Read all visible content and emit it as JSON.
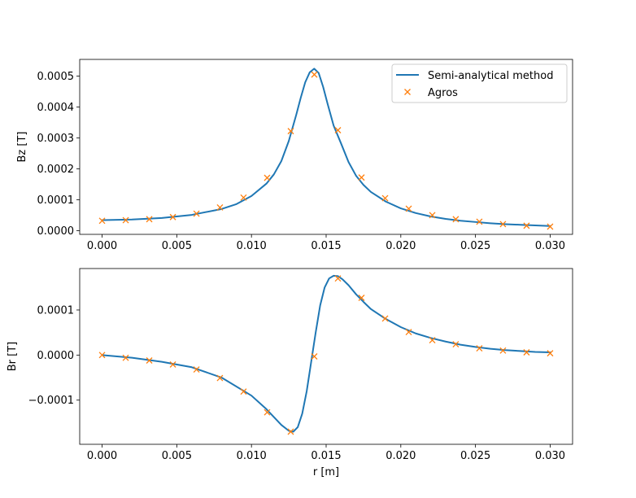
{
  "chart_data": [
    {
      "type": "line",
      "ylabel": "Bz [T]",
      "xlabel": "",
      "xlim": [
        -0.0015,
        0.0315
      ],
      "ylim": [
        -1.2e-05,
        0.000554
      ],
      "xticks": [
        "0.000",
        "0.005",
        "0.010",
        "0.015",
        "0.020",
        "0.025",
        "0.030"
      ],
      "xtick_values": [
        0,
        0.005,
        0.01,
        0.015,
        0.02,
        0.025,
        0.03
      ],
      "yticks": [
        "0.0000",
        "0.0001",
        "0.0002",
        "0.0003",
        "0.0004",
        "0.0005"
      ],
      "ytick_values": [
        0,
        0.0001,
        0.0002,
        0.0003,
        0.0004,
        0.0005
      ],
      "legend": {
        "placement": "top-right",
        "entries": [
          "Semi-analytical method",
          "Agros"
        ]
      },
      "series": [
        {
          "name": "Semi-analytical method",
          "style": "line",
          "color": "#1f77b4",
          "x": [
            0,
            0.002,
            0.004,
            0.006,
            0.008,
            0.009,
            0.01,
            0.011,
            0.0115,
            0.012,
            0.0125,
            0.013,
            0.0133,
            0.0136,
            0.0139,
            0.0142,
            0.0145,
            0.0148,
            0.0151,
            0.0155,
            0.016,
            0.0165,
            0.017,
            0.0175,
            0.018,
            0.019,
            0.02,
            0.021,
            0.022,
            0.023,
            0.024,
            0.025,
            0.026,
            0.027,
            0.028,
            0.029,
            0.03
          ],
          "y": [
            3.4e-05,
            3.6e-05,
            4.1e-05,
            5.1e-05,
            7e-05,
            8.6e-05,
            0.000112,
            0.000152,
            0.000182,
            0.000225,
            0.00029,
            0.000375,
            0.00043,
            0.00048,
            0.000512,
            0.000524,
            0.00051,
            0.000465,
            0.00041,
            0.00034,
            0.000282,
            0.000222,
            0.000178,
            0.000148,
            0.000125,
            9.4e-05,
            7.2e-05,
            5.7e-05,
            4.6e-05,
            3.8e-05,
            3.2e-05,
            2.8e-05,
            2.4e-05,
            2.1e-05,
            1.9e-05,
            1.7e-05,
            1.5e-05
          ]
        },
        {
          "name": "Agros",
          "style": "marker-x",
          "color": "#ff7f0e",
          "x": [
            0,
            0.00158,
            0.00316,
            0.00474,
            0.00632,
            0.00789,
            0.00947,
            0.01105,
            0.01263,
            0.01421,
            0.01579,
            0.01737,
            0.01895,
            0.02053,
            0.02211,
            0.02368,
            0.02526,
            0.02684,
            0.02842,
            0.03
          ],
          "y": [
            3.2e-05,
            3.4e-05,
            3.7e-05,
            4.4e-05,
            5.5e-05,
            7.5e-05,
            0.000107,
            0.000171,
            0.000322,
            0.000505,
            0.000325,
            0.000172,
            0.000105,
            7.1e-05,
            5e-05,
            3.7e-05,
            2.9e-05,
            2.1e-05,
            1.6e-05,
            1.3e-05
          ]
        }
      ]
    },
    {
      "type": "line",
      "ylabel": "Br [T]",
      "xlabel": "r [m]",
      "xlim": [
        -0.0015,
        0.0315
      ],
      "ylim": [
        -0.000198,
        0.000192
      ],
      "xticks": [
        "0.000",
        "0.005",
        "0.010",
        "0.015",
        "0.020",
        "0.025",
        "0.030"
      ],
      "xtick_values": [
        0,
        0.005,
        0.01,
        0.015,
        0.02,
        0.025,
        0.03
      ],
      "yticks": [
        "−0.0001",
        "0.0000",
        "0.0001"
      ],
      "ytick_values": [
        -0.0001,
        0,
        0.0001
      ],
      "series": [
        {
          "name": "Semi-analytical method",
          "style": "line",
          "color": "#1f77b4",
          "x": [
            0,
            0.002,
            0.004,
            0.006,
            0.008,
            0.01,
            0.011,
            0.012,
            0.0125,
            0.0128,
            0.0131,
            0.0134,
            0.0137,
            0.014,
            0.0143,
            0.0146,
            0.0149,
            0.0152,
            0.0155,
            0.0158,
            0.0161,
            0.0165,
            0.017,
            0.0175,
            0.018,
            0.019,
            0.02,
            0.021,
            0.022,
            0.023,
            0.024,
            0.025,
            0.026,
            0.027,
            0.028,
            0.029,
            0.03
          ],
          "y": [
            0,
            -6e-06,
            -1.5e-05,
            -2.7e-05,
            -5e-05,
            -9e-05,
            -0.00012,
            -0.000155,
            -0.000168,
            -0.00017,
            -0.00016,
            -0.00013,
            -8e-05,
            -1.5e-05,
            5e-05,
            0.00011,
            0.00015,
            0.00017,
            0.000176,
            0.000175,
            0.000168,
            0.000155,
            0.000135,
            0.000118,
            0.000102,
            8e-05,
            6.2e-05,
            4.8e-05,
            3.8e-05,
            3e-05,
            2.3e-05,
            1.8e-05,
            1.4e-05,
            1.1e-05,
            9e-06,
            7e-06,
            6e-06
          ]
        },
        {
          "name": "Agros",
          "style": "marker-x",
          "color": "#ff7f0e",
          "x": [
            0,
            0.00158,
            0.00316,
            0.00474,
            0.00632,
            0.00789,
            0.00947,
            0.01105,
            0.01263,
            0.01421,
            0.01579,
            0.01737,
            0.01895,
            0.02053,
            0.02211,
            0.02368,
            0.02526,
            0.02684,
            0.02842,
            0.03
          ],
          "y": [
            0,
            -6e-06,
            -1.2e-05,
            -2.1e-05,
            -3.2e-05,
            -5.1e-05,
            -8.1e-05,
            -0.000127,
            -0.00017,
            -3e-06,
            0.00017,
            0.000127,
            8.1e-05,
            5.1e-05,
            3.3e-05,
            2.4e-05,
            1.5e-05,
            1e-05,
            6e-06,
            4e-06
          ]
        }
      ]
    }
  ]
}
